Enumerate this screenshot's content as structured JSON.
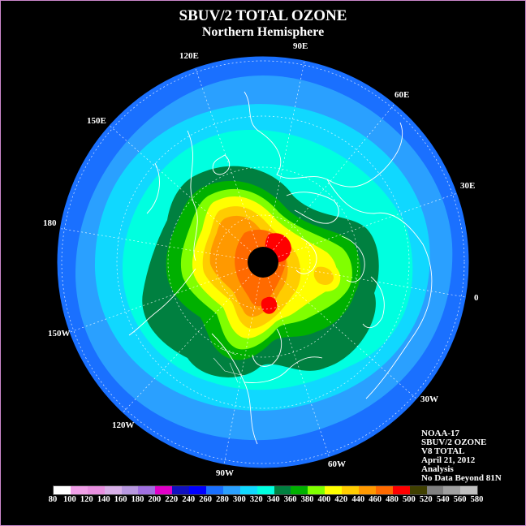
{
  "header": {
    "title": "SBUV/2 TOTAL OZONE",
    "subtitle": "Northern Hemisphere"
  },
  "longitude_labels": [
    "90E",
    "60E",
    "30E",
    "0",
    "30W",
    "60W",
    "90W",
    "120W",
    "150W",
    "180",
    "150E",
    "120E"
  ],
  "info": {
    "lines": [
      "NOAA-17",
      "SBUV/2 OZONE",
      "V8 TOTAL",
      "April 21, 2012",
      "Analysis",
      "No Data Beyond 81N"
    ]
  },
  "colorbar": {
    "ticks": [
      "80",
      "100",
      "120",
      "140",
      "160",
      "180",
      "200",
      "220",
      "240",
      "260",
      "280",
      "300",
      "320",
      "340",
      "360",
      "380",
      "400",
      "420",
      "440",
      "460",
      "480",
      "500",
      "520",
      "540",
      "560",
      "580"
    ],
    "colors": [
      "#ffffff",
      "#f0a0e8",
      "#e890e0",
      "#d8b0e8",
      "#b898e0",
      "#a070e0",
      "#e000c8",
      "#1010c0",
      "#0000ff",
      "#1a70ff",
      "#2aa0ff",
      "#10d8ff",
      "#00ffe0",
      "#008040",
      "#00b000",
      "#80ff00",
      "#ffff00",
      "#ffcc00",
      "#ff9900",
      "#ff6a00",
      "#ff0000",
      "#404000",
      "#808080",
      "#a0a0a0",
      "#c0c0c0"
    ]
  },
  "map": {
    "projection": "north polar stereographic",
    "polar_cap_color": "#000000"
  }
}
